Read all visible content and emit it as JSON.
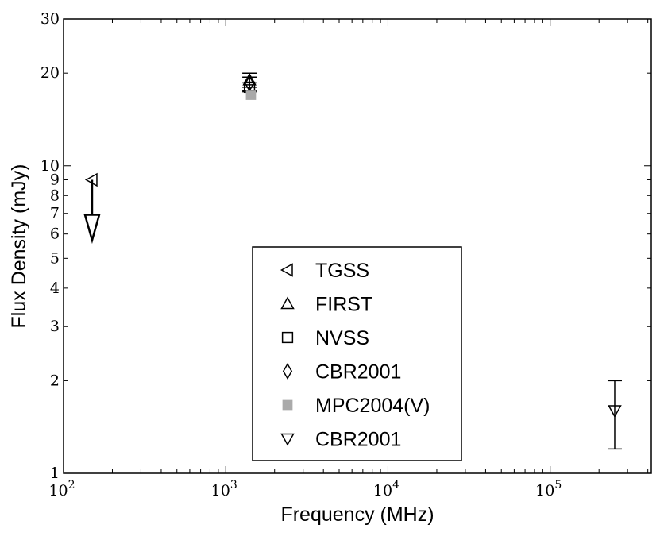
{
  "chart_data": {
    "type": "scatter",
    "xlabel": "Frequency (MHz)",
    "ylabel": "Flux Density (mJy)",
    "x_scale": "log",
    "y_scale": "log",
    "xlim": [
      100,
      420000
    ],
    "ylim": [
      1,
      30
    ],
    "x_major_ticks": [
      {
        "value": 100,
        "base": "10",
        "exp": "2"
      },
      {
        "value": 1000,
        "base": "10",
        "exp": "3"
      },
      {
        "value": 10000,
        "base": "10",
        "exp": "4"
      },
      {
        "value": 100000,
        "base": "10",
        "exp": "5"
      }
    ],
    "y_tick_labels": [
      {
        "value": 1,
        "label": "1"
      },
      {
        "value": 2,
        "label": "2"
      },
      {
        "value": 3,
        "label": "3"
      },
      {
        "value": 4,
        "label": "4"
      },
      {
        "value": 5,
        "label": "5"
      },
      {
        "value": 6,
        "label": "6"
      },
      {
        "value": 7,
        "label": "7"
      },
      {
        "value": 8,
        "label": "8"
      },
      {
        "value": 9,
        "label": "9"
      },
      {
        "value": 10,
        "label": "10"
      },
      {
        "value": 20,
        "label": "20"
      },
      {
        "value": 30,
        "label": "30"
      }
    ],
    "grid": false,
    "legend_position": "lower-center",
    "series": [
      {
        "name": "TGSS",
        "marker": "triangle-left",
        "color": "#000000",
        "filled": false,
        "points": [
          {
            "x": 150,
            "y": 9.0,
            "upper_limit": true
          }
        ]
      },
      {
        "name": "FIRST",
        "marker": "triangle-up",
        "color": "#000000",
        "filled": false,
        "points": [
          {
            "x": 1400,
            "y": 19.0,
            "yerr": 1.0
          }
        ]
      },
      {
        "name": "NVSS",
        "marker": "square",
        "color": "#000000",
        "filled": false,
        "points": [
          {
            "x": 1400,
            "y": 18.0,
            "yerr": 0.6
          }
        ]
      },
      {
        "name": "CBR2001",
        "marker": "diamond",
        "color": "#000000",
        "filled": false,
        "points": [
          {
            "x": 1400,
            "y": 18.5,
            "yerr": 0.9
          }
        ]
      },
      {
        "name": "MPC2004(V)",
        "marker": "square",
        "color": "#aaaaaa",
        "filled": true,
        "points": [
          {
            "x": 1430,
            "y": 17.0
          }
        ]
      },
      {
        "name": "CBR2001",
        "marker": "triangle-down",
        "color": "#000000",
        "filled": false,
        "points": [
          {
            "x": 250000,
            "y": 1.6,
            "ylow": 1.2,
            "yhigh": 2.0
          }
        ]
      }
    ]
  }
}
